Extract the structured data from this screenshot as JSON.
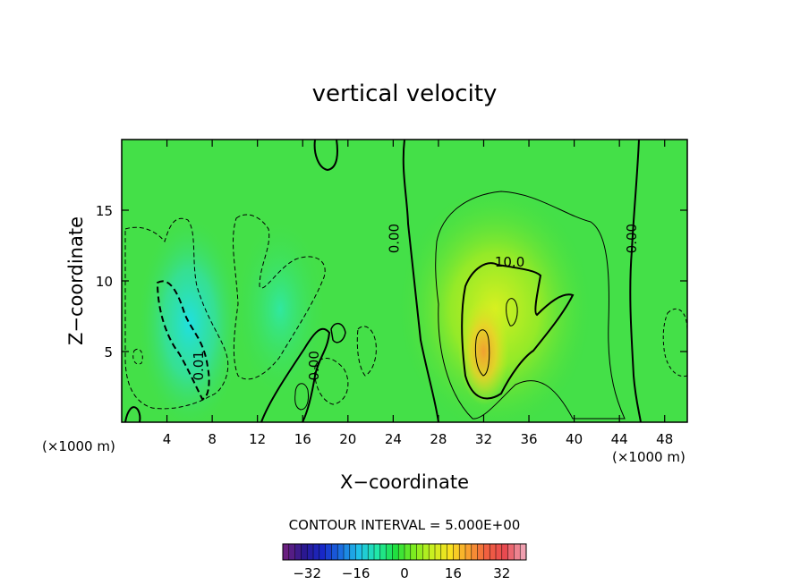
{
  "chart_data": {
    "type": "heatmap",
    "title": "vertical velocity",
    "xlabel": "X−coordinate",
    "ylabel": "Z−coordinate",
    "x_unit_left": "(×1000 m)",
    "x_unit_right": "(×1000 m)",
    "xlim": [
      0,
      50
    ],
    "ylim": [
      0,
      20
    ],
    "x_ticks": [
      4,
      8,
      12,
      16,
      20,
      24,
      28,
      32,
      36,
      40,
      44,
      48
    ],
    "y_ticks": [
      5,
      10,
      15
    ],
    "contour_interval_text": "CONTOUR INTERVAL = 5.000E+00",
    "contour_labels": [
      {
        "text": "0.00",
        "x": 24.5,
        "y": 13
      },
      {
        "text": "10.0",
        "x": 34.3,
        "y": 11
      },
      {
        "text": "0.00",
        "x": 45.5,
        "y": 13
      },
      {
        "text": "0.00",
        "x": 17.4,
        "y": 4
      },
      {
        "text": "0.01",
        "x": 7.2,
        "y": 4
      }
    ],
    "colorbar": {
      "min": -40,
      "max": 40,
      "ticks": [
        -32,
        -16,
        0,
        16,
        32
      ],
      "colors": [
        "#6a2080",
        "#2a1890",
        "#1828c8",
        "#1a6ee0",
        "#20c0e8",
        "#20e8a8",
        "#20e040",
        "#7cec20",
        "#c8f020",
        "#f8e020",
        "#f8a030",
        "#f06040",
        "#e84a50",
        "#f0a0b0"
      ]
    },
    "field": {
      "background": 0,
      "features": [
        {
          "type": "updraft",
          "x": 33,
          "z": 8,
          "peak": 12
        },
        {
          "type": "updraft_core",
          "x": 32,
          "z": 5,
          "peak": 16
        },
        {
          "type": "downdraft",
          "x": 6,
          "z": 7,
          "peak": -8
        },
        {
          "type": "downdraft",
          "x": 14,
          "z": 8,
          "peak": -4
        }
      ]
    }
  }
}
